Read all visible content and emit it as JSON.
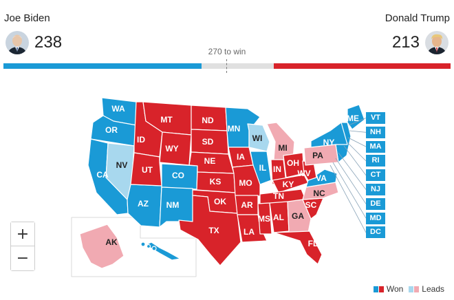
{
  "candidates": {
    "left": {
      "name": "Joe Biden",
      "votes": "238",
      "color": "#1a9ad6"
    },
    "right": {
      "name": "Donald Trump",
      "votes": "213",
      "color": "#d8232a"
    }
  },
  "threshold": {
    "label": "270 to win",
    "value": 270,
    "total": 538
  },
  "colors": {
    "dem_won": "#1a9ad6",
    "dem_leads": "#a8d8ee",
    "rep_won": "#d8232a",
    "rep_leads": "#f1aab2"
  },
  "states": [
    {
      "abbr": "WA",
      "status": "dem_won"
    },
    {
      "abbr": "OR",
      "status": "dem_won"
    },
    {
      "abbr": "CA",
      "status": "dem_won"
    },
    {
      "abbr": "NV",
      "status": "dem_leads"
    },
    {
      "abbr": "AZ",
      "status": "dem_won"
    },
    {
      "abbr": "ID",
      "status": "rep_won"
    },
    {
      "abbr": "MT",
      "status": "rep_won"
    },
    {
      "abbr": "WY",
      "status": "rep_won"
    },
    {
      "abbr": "UT",
      "status": "rep_won"
    },
    {
      "abbr": "CO",
      "status": "dem_won"
    },
    {
      "abbr": "NM",
      "status": "dem_won"
    },
    {
      "abbr": "ND",
      "status": "rep_won"
    },
    {
      "abbr": "SD",
      "status": "rep_won"
    },
    {
      "abbr": "NE",
      "status": "rep_won"
    },
    {
      "abbr": "KS",
      "status": "rep_won"
    },
    {
      "abbr": "OK",
      "status": "rep_won"
    },
    {
      "abbr": "TX",
      "status": "rep_won"
    },
    {
      "abbr": "MN",
      "status": "dem_won"
    },
    {
      "abbr": "IA",
      "status": "rep_won"
    },
    {
      "abbr": "MO",
      "status": "rep_won"
    },
    {
      "abbr": "AR",
      "status": "rep_won"
    },
    {
      "abbr": "LA",
      "status": "rep_won"
    },
    {
      "abbr": "WI",
      "status": "dem_leads"
    },
    {
      "abbr": "IL",
      "status": "dem_won"
    },
    {
      "abbr": "MI",
      "status": "rep_leads"
    },
    {
      "abbr": "IN",
      "status": "rep_won"
    },
    {
      "abbr": "OH",
      "status": "rep_won"
    },
    {
      "abbr": "KY",
      "status": "rep_won"
    },
    {
      "abbr": "TN",
      "status": "rep_won"
    },
    {
      "abbr": "MS",
      "status": "rep_won"
    },
    {
      "abbr": "AL",
      "status": "rep_won"
    },
    {
      "abbr": "GA",
      "status": "rep_leads"
    },
    {
      "abbr": "FL",
      "status": "rep_won"
    },
    {
      "abbr": "SC",
      "status": "rep_won"
    },
    {
      "abbr": "NC",
      "status": "rep_leads"
    },
    {
      "abbr": "VA",
      "status": "dem_won"
    },
    {
      "abbr": "WV",
      "status": "rep_won"
    },
    {
      "abbr": "PA",
      "status": "rep_leads"
    },
    {
      "abbr": "NY",
      "status": "dem_won"
    },
    {
      "abbr": "ME",
      "status": "dem_won"
    },
    {
      "abbr": "AK",
      "status": "rep_leads"
    },
    {
      "abbr": "HI",
      "status": "dem_won"
    }
  ],
  "northeast_boxes": [
    "VT",
    "NH",
    "MA",
    "RI",
    "CT",
    "NJ",
    "DE",
    "MD",
    "DC"
  ],
  "legend": {
    "won": "Won",
    "leads": "Leads"
  },
  "zoom": {
    "in": "+",
    "out": "−"
  }
}
